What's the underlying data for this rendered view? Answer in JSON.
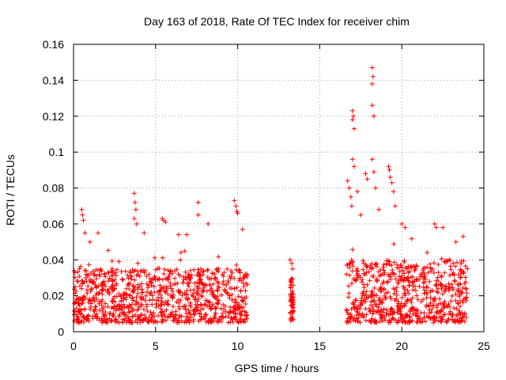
{
  "chart_data": {
    "type": "scatter",
    "title": "Day 163 of 2018, Rate Of TEC Index for receiver chim",
    "xlabel": "GPS time / hours",
    "ylabel": "ROTI / TECUs",
    "xlim": [
      0,
      25
    ],
    "ylim": [
      0,
      0.16
    ],
    "xticks": [
      0,
      5,
      10,
      15,
      20,
      25
    ],
    "xtick_labels": [
      "0",
      "5",
      "10",
      "15",
      "20",
      "25"
    ],
    "yticks": [
      0,
      0.02,
      0.04,
      0.06,
      0.08,
      0.1,
      0.12,
      0.14,
      0.16
    ],
    "ytick_labels": [
      "0",
      "0.02",
      "0.04",
      "0.06",
      "0.08",
      "0.1",
      "0.12",
      "0.14",
      "0.16"
    ],
    "grid": true,
    "legend": "none",
    "marker": "+",
    "marker_color": "#ff0000",
    "series": [
      {
        "name": "ROTI",
        "segments": [
          {
            "x_range": [
              0.0,
              10.6
            ],
            "typical_range": [
              0.005,
              0.035
            ]
          },
          {
            "x_range": [
              13.2,
              13.4
            ],
            "typical_range": [
              0.006,
              0.03
            ]
          },
          {
            "x_range": [
              16.6,
              24.0
            ],
            "typical_range": [
              0.005,
              0.04
            ]
          }
        ],
        "points": [
          [
            0.5,
            0.068
          ],
          [
            0.55,
            0.065
          ],
          [
            0.6,
            0.062
          ],
          [
            0.7,
            0.055
          ],
          [
            1.0,
            0.05
          ],
          [
            1.5,
            0.055
          ],
          [
            3.7,
            0.077
          ],
          [
            3.75,
            0.072
          ],
          [
            3.8,
            0.068
          ],
          [
            3.7,
            0.063
          ],
          [
            3.85,
            0.06
          ],
          [
            4.3,
            0.055
          ],
          [
            5.4,
            0.063
          ],
          [
            5.5,
            0.062
          ],
          [
            5.6,
            0.061
          ],
          [
            6.4,
            0.054
          ],
          [
            6.9,
            0.054
          ],
          [
            7.6,
            0.072
          ],
          [
            7.6,
            0.065
          ],
          [
            8.2,
            0.06
          ],
          [
            9.8,
            0.073
          ],
          [
            9.9,
            0.07
          ],
          [
            9.95,
            0.067
          ],
          [
            10.0,
            0.066
          ],
          [
            10.3,
            0.057
          ],
          [
            13.2,
            0.04
          ],
          [
            13.3,
            0.038
          ],
          [
            13.35,
            0.035
          ],
          [
            16.7,
            0.084
          ],
          [
            16.8,
            0.08
          ],
          [
            16.9,
            0.075
          ],
          [
            16.95,
            0.07
          ],
          [
            17.0,
            0.123
          ],
          [
            17.05,
            0.12
          ],
          [
            17.0,
            0.118
          ],
          [
            17.1,
            0.113
          ],
          [
            17.0,
            0.096
          ],
          [
            17.1,
            0.092
          ],
          [
            17.3,
            0.078
          ],
          [
            17.5,
            0.065
          ],
          [
            17.8,
            0.088
          ],
          [
            17.9,
            0.085
          ],
          [
            18.2,
            0.147
          ],
          [
            18.25,
            0.142
          ],
          [
            18.2,
            0.138
          ],
          [
            18.2,
            0.126
          ],
          [
            18.3,
            0.12
          ],
          [
            18.2,
            0.096
          ],
          [
            18.3,
            0.089
          ],
          [
            18.4,
            0.08
          ],
          [
            18.6,
            0.068
          ],
          [
            19.2,
            0.092
          ],
          [
            19.25,
            0.09
          ],
          [
            19.3,
            0.086
          ],
          [
            19.4,
            0.083
          ],
          [
            19.5,
            0.078
          ],
          [
            19.6,
            0.07
          ],
          [
            20.0,
            0.06
          ],
          [
            20.2,
            0.058
          ],
          [
            22.0,
            0.06
          ],
          [
            22.1,
            0.058
          ],
          [
            22.5,
            0.058
          ],
          [
            23.3,
            0.05
          ]
        ]
      }
    ]
  }
}
